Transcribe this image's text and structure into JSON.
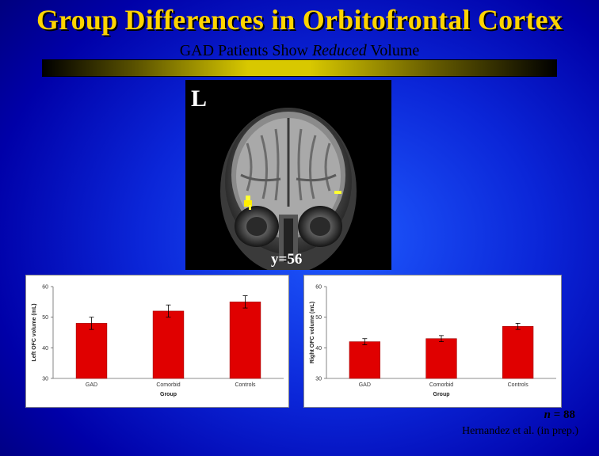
{
  "title": "Group Differences in Orbitofrontal Cortex",
  "subtitle_pre": "GAD Patients Show ",
  "subtitle_emph": "Reduced",
  "subtitle_post": " Volume",
  "brain_image": {
    "orientation_label": "L",
    "slice_label": "y=56"
  },
  "n_var": "n",
  "n_value": " = 88",
  "citation": "Hernandez et al. (in prep.)",
  "colors": {
    "title": "#ffd400",
    "background": "#0b26d8",
    "bar": "#e00000",
    "highlight": "#ffff00"
  },
  "chart_data": [
    {
      "type": "bar",
      "categories": [
        "GAD",
        "Comorbid",
        "Controls"
      ],
      "values": [
        48,
        52,
        55
      ],
      "errors": [
        2,
        2,
        2
      ],
      "xlabel": "Group",
      "ylabel": "Left OFC volume (mL)",
      "ylim": [
        30,
        60
      ],
      "yticks": [
        30,
        40,
        50,
        60
      ],
      "grid": false
    },
    {
      "type": "bar",
      "categories": [
        "GAD",
        "Comorbid",
        "Controls"
      ],
      "values": [
        42,
        43,
        47
      ],
      "errors": [
        1,
        1,
        1
      ],
      "xlabel": "Group",
      "ylabel": "Right OFC volume (mL)",
      "ylim": [
        30,
        60
      ],
      "yticks": [
        30,
        40,
        50,
        60
      ],
      "grid": false
    }
  ]
}
